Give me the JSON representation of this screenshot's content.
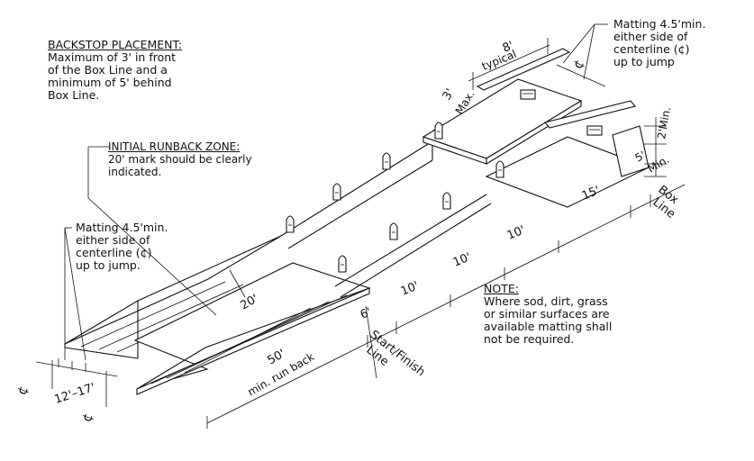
{
  "notes": {
    "backstop": {
      "title": "BACKSTOP PLACEMENT:",
      "lines": [
        "Maximum of 3' in front",
        "of the Box Line and a",
        "minimum of 5' behind",
        "Box Line."
      ]
    },
    "runback": {
      "title": "INITIAL RUNBACK ZONE:",
      "lines": [
        "20' mark should be clearly",
        "indicated."
      ]
    },
    "matting_left": {
      "lines": [
        "Matting 4.5'min.",
        "either side of",
        "centerline (¢)",
        "up to jump."
      ]
    },
    "matting_right": {
      "lines": [
        "Matting 4.5'min.",
        "either side of",
        "centerline (¢)",
        "up to jump"
      ]
    },
    "note": {
      "title": "NOTE:",
      "lines": [
        "Where sod, dirt, grass",
        "or similar surfaces are",
        "available matting shall",
        "not be required."
      ]
    }
  },
  "dimensions": {
    "typical_width": "8'",
    "typical_label": "typical",
    "max_3": "3'",
    "max_label": "Max.",
    "min_2": "2'Min.",
    "min_5": "5'",
    "min_label": "Min.",
    "d15": "15'",
    "d10a": "10'",
    "d10b": "10'",
    "d10c": "10'",
    "d6": "6'",
    "d20": "20'",
    "d50": "50'",
    "runback_label": "min. run back",
    "lane_span": "12'–17'",
    "centerline_symbol": "¢"
  },
  "lines_labels": {
    "box_line_1": "Box",
    "box_line_2": "Line",
    "start_1": "Start/Finish",
    "start_2": "Line"
  }
}
